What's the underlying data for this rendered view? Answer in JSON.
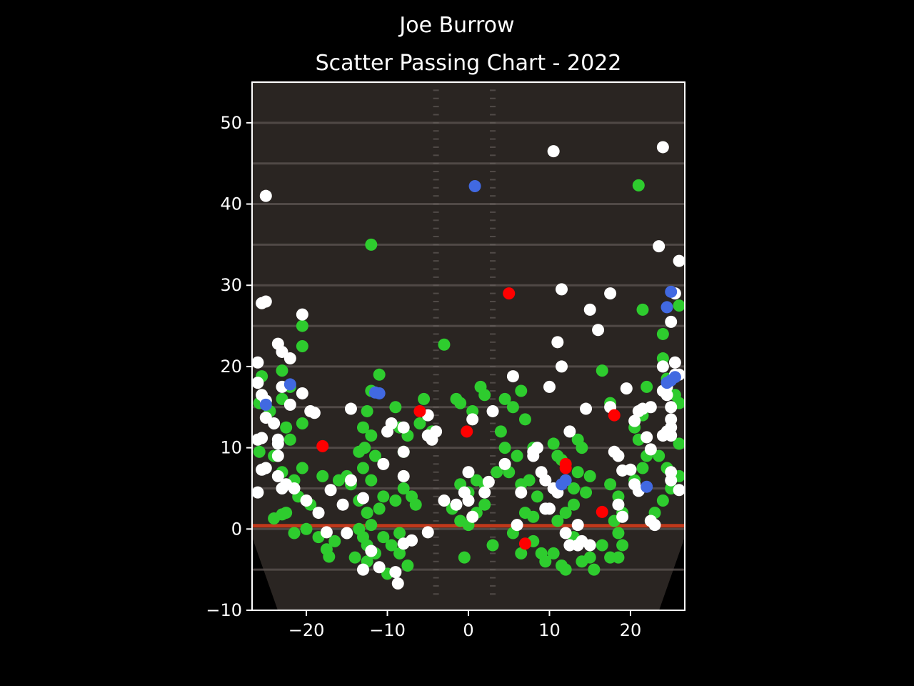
{
  "chart_data": {
    "type": "scatter",
    "title": "Joe Burrow",
    "subtitle": "Scatter Passing Chart - 2022",
    "xlabel": "",
    "ylabel": "",
    "xlim": [
      -26.7,
      26.7
    ],
    "ylim": [
      -10,
      55
    ],
    "xticks": [
      -20,
      -10,
      0,
      10,
      20
    ],
    "xtick_labels": [
      "−20",
      "−10",
      "0",
      "10",
      "20"
    ],
    "yticks": [
      -10,
      0,
      10,
      20,
      30,
      40,
      50
    ],
    "ytick_labels": [
      "−10",
      "0",
      "10",
      "20",
      "30",
      "40",
      "50"
    ],
    "grid": false,
    "legend": "none",
    "background": "football field image",
    "colors": {
      "page": "#000000",
      "axes": "#ffffff",
      "field": "#2a2522",
      "yard_line": "#5a5350",
      "line_of_scrimmage": "#c0391b"
    },
    "series": [
      {
        "color": "#2ecc2e",
        "points": [
          [
            -25.5,
            18.8
          ],
          [
            -25.8,
            15.5
          ],
          [
            -24.5,
            14.5
          ],
          [
            -23,
            16
          ],
          [
            -22.5,
            12.5
          ],
          [
            -22,
            11
          ],
          [
            -25.8,
            9.5
          ],
          [
            -24,
            9
          ],
          [
            -23,
            7
          ],
          [
            -21.5,
            6
          ],
          [
            -20.5,
            7.5
          ],
          [
            -21,
            4
          ],
          [
            -19.5,
            3
          ],
          [
            -22.5,
            2
          ],
          [
            -24,
            1.3
          ],
          [
            -23,
            1.8
          ],
          [
            -21.5,
            -0.5
          ],
          [
            -20,
            0
          ],
          [
            -18.5,
            -1
          ],
          [
            -17.5,
            -2.5
          ],
          [
            -17.2,
            -3.4
          ],
          [
            -16.5,
            -1.5
          ],
          [
            -18,
            6.5
          ],
          [
            -20.5,
            13
          ],
          [
            -20.5,
            22.5
          ],
          [
            -20.5,
            25
          ],
          [
            -23,
            19.5
          ],
          [
            -22,
            17.5
          ],
          [
            -13,
            12.5
          ],
          [
            -12.5,
            14.5
          ],
          [
            -12.8,
            10
          ],
          [
            -13.5,
            9.5
          ],
          [
            -12,
            11.5
          ],
          [
            -11.5,
            9
          ],
          [
            -13,
            7.5
          ],
          [
            -12,
            6
          ],
          [
            -14.5,
            5.5
          ],
          [
            -13.5,
            3.5
          ],
          [
            -12.5,
            2
          ],
          [
            -11,
            2.5
          ],
          [
            -10.5,
            4
          ],
          [
            -9,
            3.5
          ],
          [
            -8,
            5
          ],
          [
            -7,
            4
          ],
          [
            -6.5,
            3
          ],
          [
            -12,
            35
          ],
          [
            -11,
            19
          ],
          [
            -12,
            17
          ],
          [
            -9,
            15
          ],
          [
            -8.5,
            12.5
          ],
          [
            -7.5,
            11.5
          ],
          [
            -6,
            13
          ],
          [
            -5.5,
            16
          ],
          [
            -4.5,
            12
          ],
          [
            -13,
            -1
          ],
          [
            -12.5,
            -2
          ],
          [
            -14,
            -3.5
          ],
          [
            -12.5,
            -4
          ],
          [
            -11.5,
            -3
          ],
          [
            -10.5,
            -1
          ],
          [
            -9.5,
            -2
          ],
          [
            -8.5,
            -0.5
          ],
          [
            -8.5,
            -3
          ],
          [
            -7.5,
            -4.5
          ],
          [
            -13.5,
            0
          ],
          [
            -12,
            0.5
          ],
          [
            -10,
            -5.5
          ],
          [
            -3,
            22.7
          ],
          [
            -1.5,
            16
          ],
          [
            -1,
            15.5
          ],
          [
            0.5,
            14.5
          ],
          [
            1.5,
            17.5
          ],
          [
            2,
            16.5
          ],
          [
            -1,
            5.5
          ],
          [
            0,
            4.5
          ],
          [
            1,
            6
          ],
          [
            2,
            5.5
          ],
          [
            -2,
            2.5
          ],
          [
            -1,
            1
          ],
          [
            0,
            0.5
          ],
          [
            1,
            2
          ],
          [
            2,
            3
          ],
          [
            -0.5,
            -3.5
          ],
          [
            3,
            -2
          ],
          [
            3.5,
            7
          ],
          [
            4.5,
            10
          ],
          [
            4,
            12
          ],
          [
            4.5,
            16
          ],
          [
            5.5,
            15
          ],
          [
            6.5,
            17
          ],
          [
            7,
            13.5
          ],
          [
            8,
            10
          ],
          [
            6,
            9
          ],
          [
            5,
            7
          ],
          [
            6.5,
            5.5
          ],
          [
            7.5,
            6
          ],
          [
            8.5,
            4
          ],
          [
            7,
            2
          ],
          [
            8,
            1.5
          ],
          [
            5.5,
            -0.5
          ],
          [
            6.5,
            -3
          ],
          [
            8,
            -1.5
          ],
          [
            9,
            -3
          ],
          [
            9.5,
            -4
          ],
          [
            10.5,
            -3
          ],
          [
            11.5,
            -4.5
          ],
          [
            12,
            -5
          ],
          [
            13,
            -1
          ],
          [
            14,
            -4
          ],
          [
            15,
            -3.5
          ],
          [
            15.5,
            -5
          ],
          [
            16.5,
            -2
          ],
          [
            17.5,
            -3.5
          ],
          [
            18.5,
            -3.5
          ],
          [
            19,
            -2
          ],
          [
            18.5,
            -0.5
          ],
          [
            18,
            1
          ],
          [
            19,
            2
          ],
          [
            18.5,
            4
          ],
          [
            17.5,
            5.5
          ],
          [
            20.5,
            6
          ],
          [
            21.5,
            7.5
          ],
          [
            22,
            9
          ],
          [
            21,
            11
          ],
          [
            20.5,
            12.5
          ],
          [
            21.5,
            14
          ],
          [
            22,
            17.5
          ],
          [
            21.5,
            27
          ],
          [
            21,
            42.3
          ],
          [
            16.5,
            19.5
          ],
          [
            17.5,
            15.5
          ],
          [
            15,
            6.5
          ],
          [
            14.5,
            4.5
          ],
          [
            13,
            5
          ],
          [
            13.5,
            7
          ],
          [
            13,
            3
          ],
          [
            12,
            2
          ],
          [
            11,
            1
          ],
          [
            11,
            9
          ],
          [
            10.5,
            10.5
          ],
          [
            13.5,
            11
          ],
          [
            14,
            10
          ],
          [
            11.5,
            8.5
          ],
          [
            24,
            24
          ],
          [
            24,
            21
          ],
          [
            24.5,
            18.5
          ],
          [
            25.5,
            16.5
          ],
          [
            26,
            15.5
          ],
          [
            26,
            27.5
          ],
          [
            26,
            10.5
          ],
          [
            23.5,
            9
          ],
          [
            24.5,
            7.5
          ],
          [
            26,
            6.5
          ],
          [
            25,
            5
          ],
          [
            24,
            3.5
          ],
          [
            23,
            2
          ],
          [
            22.5,
            1
          ],
          [
            -16,
            6
          ],
          [
            -15,
            6.5
          ],
          [
            -8,
            9.5
          ]
        ]
      },
      {
        "color": "#ffffff",
        "points": [
          [
            -25,
            41
          ],
          [
            -25.5,
            27.8
          ],
          [
            -25,
            28
          ],
          [
            -23.5,
            22.8
          ],
          [
            -23,
            21.8
          ],
          [
            -22,
            21
          ],
          [
            -26,
            20.5
          ],
          [
            -26,
            18
          ],
          [
            -25.5,
            16.5
          ],
          [
            -25,
            15.8
          ],
          [
            -25,
            13.7
          ],
          [
            -24,
            13
          ],
          [
            -23,
            17.5
          ],
          [
            -22,
            15.3
          ],
          [
            -20.5,
            16.7
          ],
          [
            -19.5,
            14.5
          ],
          [
            -19,
            14.3
          ],
          [
            -23.5,
            11
          ],
          [
            -26,
            11
          ],
          [
            -25.5,
            11.2
          ],
          [
            -23.5,
            10.5
          ],
          [
            -23.5,
            9
          ],
          [
            -25,
            7.5
          ],
          [
            -25.5,
            7.3
          ],
          [
            -23.5,
            6.5
          ],
          [
            -22.5,
            5.5
          ],
          [
            -21.5,
            5
          ],
          [
            -23,
            5
          ],
          [
            -20.5,
            26.4
          ],
          [
            -26,
            4.5
          ],
          [
            -20,
            3.5
          ],
          [
            -18.5,
            2
          ],
          [
            -17,
            4.8
          ],
          [
            -15.5,
            3
          ],
          [
            -17.5,
            -0.4
          ],
          [
            -15,
            -0.5
          ],
          [
            -14.5,
            14.8
          ],
          [
            -14.5,
            6
          ],
          [
            -13,
            3.8
          ],
          [
            -12,
            -2.7
          ],
          [
            -13,
            -5
          ],
          [
            -11,
            -4.7
          ],
          [
            -9,
            -5.3
          ],
          [
            -8.7,
            -6.7
          ],
          [
            -10.5,
            8
          ],
          [
            -10,
            12
          ],
          [
            -9.5,
            13
          ],
          [
            -8,
            12.5
          ],
          [
            -8,
            9.5
          ],
          [
            -8,
            6.5
          ],
          [
            -8,
            -1.8
          ],
          [
            -7,
            -1.4
          ],
          [
            -5,
            -0.4
          ],
          [
            -5,
            14
          ],
          [
            -5,
            11.5
          ],
          [
            -4.5,
            11
          ],
          [
            -4,
            12
          ],
          [
            -3,
            3.5
          ],
          [
            -1.5,
            3
          ],
          [
            -0.5,
            4.5
          ],
          [
            0,
            7
          ],
          [
            0,
            3.5
          ],
          [
            0.5,
            1.5
          ],
          [
            0.5,
            13.5
          ],
          [
            2,
            4.5
          ],
          [
            2.5,
            5.8
          ],
          [
            3,
            14.5
          ],
          [
            4.5,
            8
          ],
          [
            5.5,
            18.8
          ],
          [
            6,
            0.5
          ],
          [
            6.5,
            4.5
          ],
          [
            8,
            9.5
          ],
          [
            8,
            9
          ],
          [
            8.5,
            10
          ],
          [
            9,
            7
          ],
          [
            9.5,
            6
          ],
          [
            9.5,
            2.5
          ],
          [
            10,
            2.5
          ],
          [
            10.5,
            5
          ],
          [
            11,
            4.5
          ],
          [
            10.5,
            46.5
          ],
          [
            11,
            23
          ],
          [
            11.5,
            29.5
          ],
          [
            11.5,
            20
          ],
          [
            10,
            17.5
          ],
          [
            12.5,
            12
          ],
          [
            12,
            -0.5
          ],
          [
            12.5,
            -2
          ],
          [
            13.5,
            0.5
          ],
          [
            13.5,
            -2
          ],
          [
            14,
            -1.5
          ],
          [
            15,
            -2
          ],
          [
            14.5,
            14.8
          ],
          [
            15,
            27
          ],
          [
            16,
            24.5
          ],
          [
            17.5,
            29
          ],
          [
            17.5,
            15
          ],
          [
            18,
            9.5
          ],
          [
            18.5,
            9
          ],
          [
            19,
            7.2
          ],
          [
            18.5,
            3
          ],
          [
            19,
            1.5
          ],
          [
            19.5,
            17.3
          ],
          [
            20,
            7.3
          ],
          [
            20.5,
            5.5
          ],
          [
            21,
            4.7
          ],
          [
            20.5,
            13.3
          ],
          [
            21,
            14.5
          ],
          [
            21.5,
            14.8
          ],
          [
            22,
            11.3
          ],
          [
            22.5,
            9.8
          ],
          [
            22.5,
            15
          ],
          [
            23.5,
            34.8
          ],
          [
            24,
            47
          ],
          [
            26,
            33
          ],
          [
            25.5,
            29
          ],
          [
            25,
            25.5
          ],
          [
            24,
            20
          ],
          [
            25.5,
            20.5
          ],
          [
            25.5,
            19
          ],
          [
            26,
            19
          ],
          [
            24.5,
            17.5
          ],
          [
            24.5,
            16.5
          ],
          [
            24,
            17
          ],
          [
            25,
            15
          ],
          [
            25,
            13.5
          ],
          [
            25,
            12.5
          ],
          [
            24.5,
            12
          ],
          [
            25,
            11.5
          ],
          [
            24,
            11.5
          ],
          [
            25,
            7
          ],
          [
            25,
            6
          ],
          [
            26,
            4.8
          ],
          [
            22.5,
            1
          ],
          [
            23,
            0.5
          ]
        ]
      },
      {
        "color": "#4169e1",
        "points": [
          [
            -25,
            15.3
          ],
          [
            -22,
            17.8
          ],
          [
            -11.5,
            16.8
          ],
          [
            -11,
            16.7
          ],
          [
            0.8,
            42.2
          ],
          [
            11.5,
            5.5
          ],
          [
            12,
            6
          ],
          [
            22,
            5.2
          ],
          [
            25,
            29.2
          ],
          [
            24.5,
            27.3
          ],
          [
            25.5,
            18.7
          ],
          [
            24.5,
            18
          ],
          [
            25,
            18.3
          ]
        ]
      },
      {
        "color": "#ff0000",
        "points": [
          [
            -18,
            10.2
          ],
          [
            -6,
            14.5
          ],
          [
            -0.2,
            12
          ],
          [
            5,
            29
          ],
          [
            7,
            -1.8
          ],
          [
            12,
            7.5
          ],
          [
            12,
            8
          ],
          [
            16.5,
            2.1
          ],
          [
            18,
            14
          ]
        ]
      }
    ]
  }
}
